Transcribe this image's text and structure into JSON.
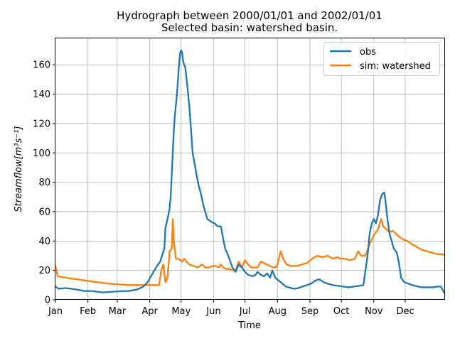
{
  "chart_data": {
    "type": "line",
    "title_line1": "Hydrograph between 2000/01/01 and 2002/01/01",
    "title_line2": "Selected basin: watershed basin.",
    "xlabel": "Time",
    "ylabel_main": "Streamflow",
    "ylabel_unit": "[m³s⁻¹]",
    "x_ticks": [
      "Jan",
      "Feb",
      "Mar",
      "Apr",
      "May",
      "Jun",
      "Jul",
      "Aug",
      "Sep",
      "Oct",
      "Nov",
      "Dec"
    ],
    "x_tick_days": [
      0,
      31,
      59,
      90,
      120,
      151,
      181,
      212,
      243,
      273,
      304,
      334
    ],
    "xlim_days": [
      0,
      372
    ],
    "ylim": [
      0,
      178
    ],
    "y_ticks": [
      0,
      20,
      40,
      60,
      80,
      100,
      120,
      140,
      160
    ],
    "grid": true,
    "legend_position": "top-right",
    "series": [
      {
        "name": "obs",
        "color": "#1f77b4",
        "points": [
          [
            0,
            9
          ],
          [
            3,
            7.5
          ],
          [
            10,
            8
          ],
          [
            20,
            7
          ],
          [
            28,
            6
          ],
          [
            35,
            6
          ],
          [
            45,
            5
          ],
          [
            55,
            5.5
          ],
          [
            65,
            6
          ],
          [
            70,
            6
          ],
          [
            78,
            7
          ],
          [
            84,
            9
          ],
          [
            88,
            12
          ],
          [
            92,
            17
          ],
          [
            96,
            22
          ],
          [
            100,
            26
          ],
          [
            104,
            35
          ],
          [
            105,
            49
          ],
          [
            107,
            55
          ],
          [
            109,
            62
          ],
          [
            110,
            70
          ],
          [
            111,
            85
          ],
          [
            112,
            100
          ],
          [
            113,
            115
          ],
          [
            114,
            125
          ],
          [
            116,
            140
          ],
          [
            118,
            160
          ],
          [
            119,
            168
          ],
          [
            120,
            170
          ],
          [
            121,
            168
          ],
          [
            122,
            162
          ],
          [
            124,
            158
          ],
          [
            126,
            145
          ],
          [
            128,
            130
          ],
          [
            130,
            110
          ],
          [
            131,
            100
          ],
          [
            133,
            92
          ],
          [
            135,
            84
          ],
          [
            137,
            77
          ],
          [
            139,
            72
          ],
          [
            141,
            65
          ],
          [
            143,
            60
          ],
          [
            145,
            55
          ],
          [
            147,
            54
          ],
          [
            149,
            53
          ],
          [
            152,
            52
          ],
          [
            155,
            50
          ],
          [
            158,
            50
          ],
          [
            160,
            42
          ],
          [
            162,
            35
          ],
          [
            165,
            30
          ],
          [
            167,
            26
          ],
          [
            169,
            22
          ],
          [
            171,
            20
          ],
          [
            172,
            19
          ],
          [
            175,
            24
          ],
          [
            178,
            22
          ],
          [
            181,
            19
          ],
          [
            184,
            17
          ],
          [
            188,
            16
          ],
          [
            191,
            17
          ],
          [
            193,
            19
          ],
          [
            196,
            17
          ],
          [
            199,
            16
          ],
          [
            202,
            18
          ],
          [
            205,
            15
          ],
          [
            207,
            20
          ],
          [
            210,
            15
          ],
          [
            215,
            12
          ],
          [
            220,
            9
          ],
          [
            225,
            8
          ],
          [
            228,
            7.5
          ],
          [
            232,
            8
          ],
          [
            236,
            9
          ],
          [
            240,
            10
          ],
          [
            244,
            11
          ],
          [
            248,
            13
          ],
          [
            252,
            14
          ],
          [
            256,
            12
          ],
          [
            260,
            11
          ],
          [
            265,
            10
          ],
          [
            270,
            9.5
          ],
          [
            275,
            9
          ],
          [
            280,
            8.5
          ],
          [
            285,
            9
          ],
          [
            290,
            9.5
          ],
          [
            294,
            10
          ],
          [
            296,
            20
          ],
          [
            298,
            30
          ],
          [
            300,
            45
          ],
          [
            302,
            52
          ],
          [
            304,
            55
          ],
          [
            306,
            52
          ],
          [
            308,
            58
          ],
          [
            310,
            68
          ],
          [
            312,
            72
          ],
          [
            314,
            73
          ],
          [
            315,
            68
          ],
          [
            317,
            55
          ],
          [
            319,
            45
          ],
          [
            321,
            40
          ],
          [
            323,
            35
          ],
          [
            326,
            32
          ],
          [
            328,
            25
          ],
          [
            330,
            15
          ],
          [
            333,
            12
          ],
          [
            337,
            11
          ],
          [
            341,
            10
          ],
          [
            346,
            9
          ],
          [
            350,
            8.5
          ],
          [
            355,
            8.5
          ],
          [
            360,
            8.5
          ],
          [
            365,
            9
          ],
          [
            368,
            9
          ],
          [
            371,
            5
          ]
        ]
      },
      {
        "name": "sim: watershed",
        "color": "#ff7f0e",
        "points": [
          [
            0,
            23
          ],
          [
            2,
            16
          ],
          [
            10,
            15
          ],
          [
            20,
            14
          ],
          [
            30,
            13
          ],
          [
            40,
            12
          ],
          [
            50,
            11
          ],
          [
            60,
            10.5
          ],
          [
            70,
            10
          ],
          [
            78,
            10
          ],
          [
            85,
            10
          ],
          [
            92,
            10
          ],
          [
            96,
            10
          ],
          [
            99,
            10
          ],
          [
            101,
            20
          ],
          [
            103,
            24
          ],
          [
            105,
            12
          ],
          [
            107,
            15
          ],
          [
            109,
            33
          ],
          [
            111,
            35
          ],
          [
            112,
            55
          ],
          [
            113,
            40
          ],
          [
            115,
            28
          ],
          [
            117,
            28
          ],
          [
            119,
            27
          ],
          [
            121,
            26
          ],
          [
            123,
            28
          ],
          [
            125,
            26
          ],
          [
            128,
            24
          ],
          [
            132,
            23
          ],
          [
            136,
            22
          ],
          [
            140,
            24
          ],
          [
            143,
            22
          ],
          [
            147,
            22
          ],
          [
            150,
            23
          ],
          [
            153,
            23
          ],
          [
            156,
            22
          ],
          [
            158,
            24
          ],
          [
            160,
            22
          ],
          [
            163,
            21
          ],
          [
            166,
            21
          ],
          [
            169,
            20
          ],
          [
            172,
            20
          ],
          [
            175,
            26
          ],
          [
            178,
            22
          ],
          [
            181,
            27
          ],
          [
            184,
            24
          ],
          [
            187,
            22
          ],
          [
            190,
            22
          ],
          [
            193,
            22
          ],
          [
            196,
            26
          ],
          [
            199,
            25
          ],
          [
            202,
            24
          ],
          [
            205,
            23
          ],
          [
            208,
            22
          ],
          [
            210,
            22
          ],
          [
            212,
            24
          ],
          [
            215,
            33
          ],
          [
            218,
            27
          ],
          [
            221,
            24
          ],
          [
            225,
            23
          ],
          [
            230,
            23
          ],
          [
            235,
            24
          ],
          [
            240,
            25
          ],
          [
            245,
            28
          ],
          [
            250,
            30
          ],
          [
            255,
            29
          ],
          [
            260,
            30
          ],
          [
            265,
            28
          ],
          [
            269,
            29
          ],
          [
            272,
            28
          ],
          [
            276,
            28
          ],
          [
            281,
            27
          ],
          [
            286,
            28
          ],
          [
            289,
            33
          ],
          [
            292,
            30
          ],
          [
            296,
            30
          ],
          [
            300,
            38
          ],
          [
            304,
            44
          ],
          [
            308,
            48
          ],
          [
            311,
            55
          ],
          [
            313,
            50
          ],
          [
            316,
            48
          ],
          [
            319,
            46
          ],
          [
            322,
            47
          ],
          [
            325,
            45
          ],
          [
            328,
            43
          ],
          [
            332,
            41
          ],
          [
            336,
            40
          ],
          [
            340,
            38
          ],
          [
            345,
            36
          ],
          [
            350,
            34
          ],
          [
            355,
            33
          ],
          [
            360,
            32
          ],
          [
            365,
            31
          ],
          [
            370,
            31
          ],
          [
            372,
            30
          ]
        ]
      }
    ]
  }
}
